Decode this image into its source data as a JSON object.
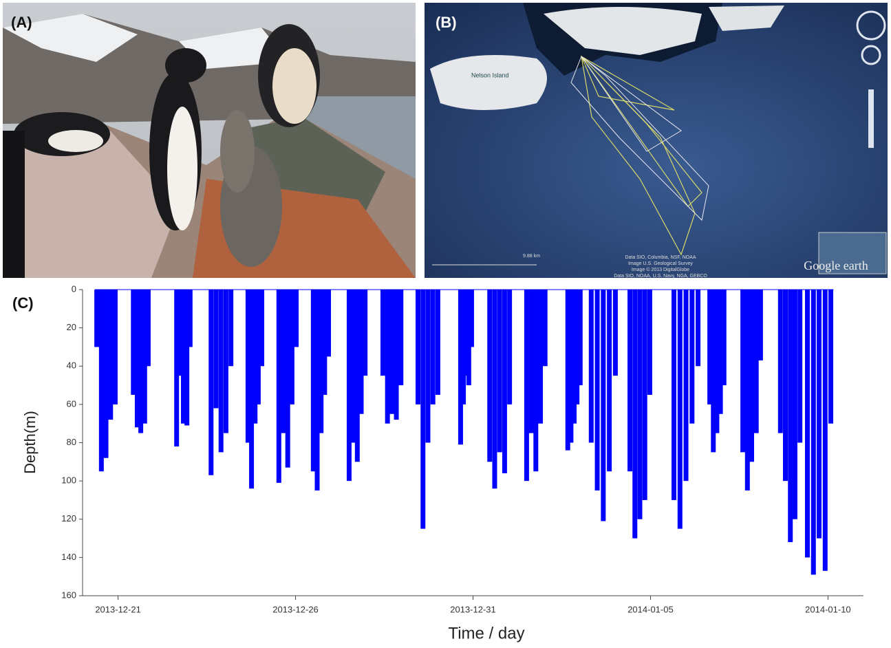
{
  "panels": {
    "a": "(A)",
    "b": "(B)",
    "c": "(C)"
  },
  "map": {
    "island": "Nelson Island",
    "scale": "9.88 km",
    "attribution": [
      "Data SIO, Columbia, NSF, NOAA",
      "Image U.S. Geological Survey",
      "Image © 2013 DigitalGlobe",
      "Data SIO, NOAA, U.S. Navy, NGA, GEBCO"
    ],
    "brand": "Google earth"
  },
  "chart_data": {
    "type": "bar",
    "xlabel": "Time / day",
    "ylabel": "Depth(m)",
    "color": "#0000ff",
    "y_inverted": true,
    "xlim": [
      -1,
      21
    ],
    "xticks": [
      {
        "value": 0,
        "label": "2013-12-21"
      },
      {
        "value": 5,
        "label": "2013-12-26"
      },
      {
        "value": 10,
        "label": "2013-12-31"
      },
      {
        "value": 15,
        "label": "2014-01-05"
      },
      {
        "value": 20,
        "label": "2014-01-10"
      }
    ],
    "ylim": [
      0,
      160
    ],
    "yticks": [
      0,
      20,
      40,
      60,
      80,
      100,
      120,
      140,
      160
    ],
    "x": [
      -0.6,
      -0.47,
      -0.34,
      -0.21,
      -0.08,
      0.43,
      0.54,
      0.64,
      0.75,
      0.85,
      1.65,
      1.75,
      1.84,
      1.94,
      2.03,
      2.62,
      2.76,
      2.9,
      3.04,
      3.18,
      3.66,
      3.76,
      3.86,
      3.95,
      4.05,
      4.53,
      4.65,
      4.78,
      4.9,
      5.02,
      5.5,
      5.61,
      5.72,
      5.82,
      5.93,
      6.51,
      6.62,
      6.74,
      6.85,
      6.96,
      7.46,
      7.59,
      7.72,
      7.84,
      7.97,
      8.45,
      8.59,
      8.73,
      8.87,
      9.01,
      9.65,
      9.73,
      9.81,
      9.88,
      9.96,
      10.47,
      10.61,
      10.75,
      10.89,
      11.03,
      11.51,
      11.64,
      11.77,
      11.9,
      12.03,
      12.67,
      12.76,
      12.85,
      12.93,
      13.02,
      13.33,
      13.5,
      13.67,
      13.84,
      14.01,
      14.42,
      14.56,
      14.7,
      14.84,
      14.98,
      15.66,
      15.83,
      16.0,
      16.17,
      16.34,
      16.67,
      16.77,
      16.87,
      16.97,
      17.07,
      17.6,
      17.73,
      17.85,
      17.98,
      18.1,
      18.66,
      18.8,
      18.94,
      19.07,
      19.21,
      19.42,
      19.59,
      19.75,
      19.92,
      20.08
    ],
    "values": [
      30,
      95,
      88,
      68,
      60,
      55,
      72,
      75,
      70,
      40,
      82,
      45,
      70,
      71,
      30,
      97,
      62,
      85,
      75,
      40,
      80,
      104,
      70,
      60,
      40,
      101,
      75,
      93,
      60,
      30,
      95,
      105,
      75,
      55,
      35,
      100,
      80,
      90,
      65,
      45,
      45,
      70,
      65,
      68,
      50,
      60,
      125,
      80,
      60,
      55,
      81,
      60,
      45,
      50,
      30,
      90,
      104,
      85,
      96,
      60,
      100,
      75,
      95,
      70,
      40,
      84,
      80,
      70,
      60,
      50,
      80,
      105,
      121,
      95,
      45,
      95,
      130,
      120,
      110,
      55,
      110,
      125,
      100,
      70,
      40,
      60,
      85,
      75,
      65,
      50,
      85,
      105,
      90,
      75,
      37,
      75,
      100,
      132,
      120,
      80,
      140,
      149,
      130,
      147,
      70
    ]
  }
}
